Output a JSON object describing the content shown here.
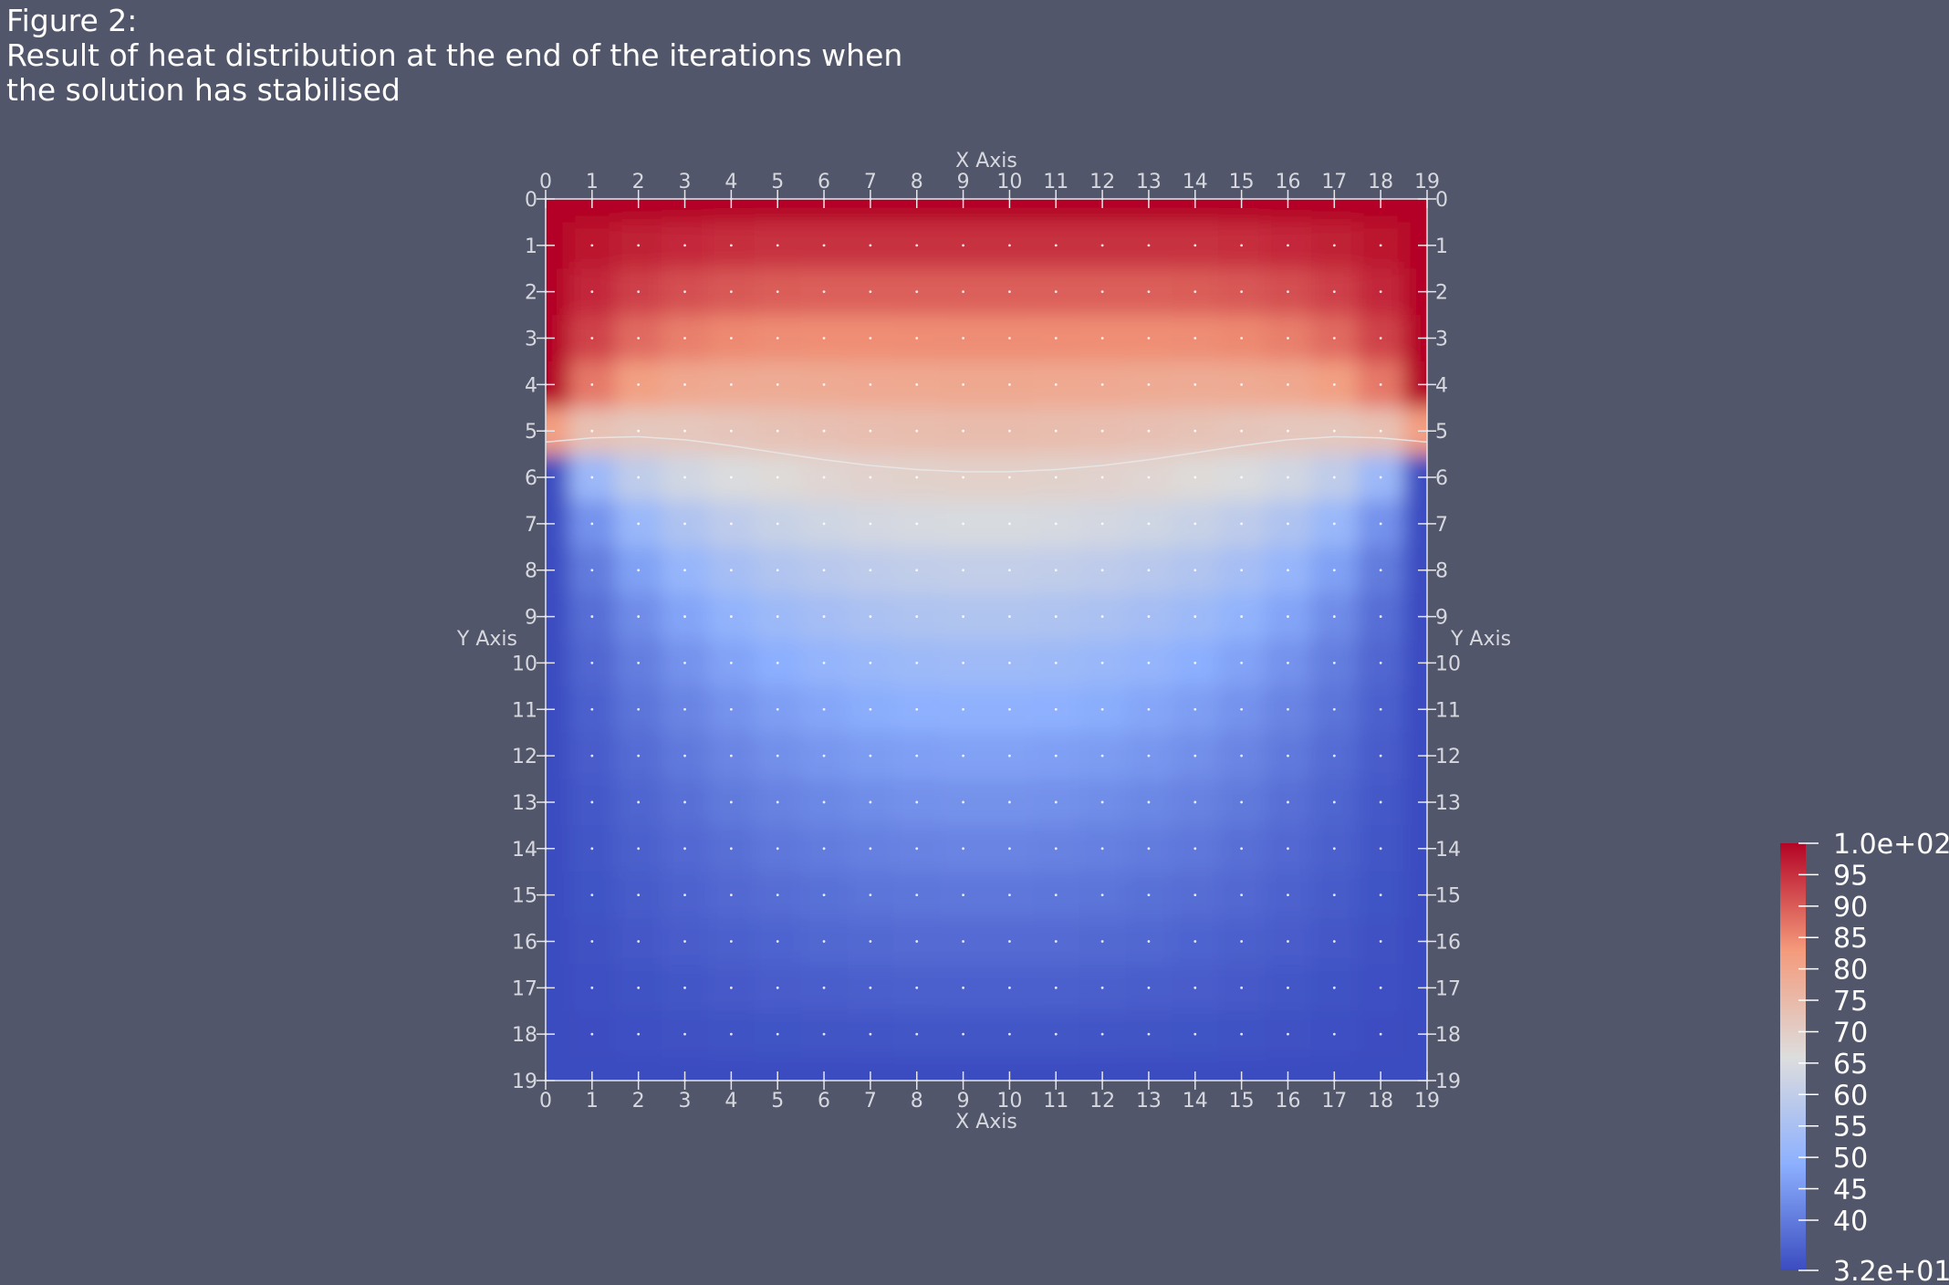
{
  "figure": {
    "title_lines": [
      "Figure 2:",
      "Result of heat distribution at the end of the iterations when",
      "the solution has stabilised"
    ]
  },
  "chart_data": {
    "type": "heatmap",
    "grid_size": 20,
    "x_ticks": [
      "0",
      "1",
      "2",
      "3",
      "4",
      "5",
      "6",
      "7",
      "8",
      "9",
      "10",
      "11",
      "12",
      "13",
      "14",
      "15",
      "16",
      "17",
      "18",
      "19"
    ],
    "y_ticks": [
      "0",
      "1",
      "2",
      "3",
      "4",
      "5",
      "6",
      "7",
      "8",
      "9",
      "10",
      "11",
      "12",
      "13",
      "14",
      "15",
      "16",
      "17",
      "18",
      "19"
    ],
    "xlabel": "X Axis",
    "ylabel": "Y Axis",
    "xlim": [
      0,
      19
    ],
    "ylim": [
      0,
      19
    ],
    "y_inverted": true,
    "grid_points_shown": true,
    "value_range": [
      32,
      100
    ],
    "colormap": "cool-to-warm",
    "colormap_stops": [
      "#3b4cc0",
      "#8db0fe",
      "#dddddd",
      "#f49a7b",
      "#b40426"
    ],
    "contour_level": 70,
    "colorbar": {
      "labels": [
        "1.0e+02",
        "95",
        "90",
        "85",
        "80",
        "75",
        "70",
        "65",
        "60",
        "55",
        "50",
        "45",
        "40",
        "3.2e+01"
      ],
      "values": [
        100,
        95,
        90,
        85,
        80,
        75,
        70,
        65,
        60,
        55,
        50,
        45,
        40,
        32
      ],
      "placement": "bottom-right"
    }
  }
}
